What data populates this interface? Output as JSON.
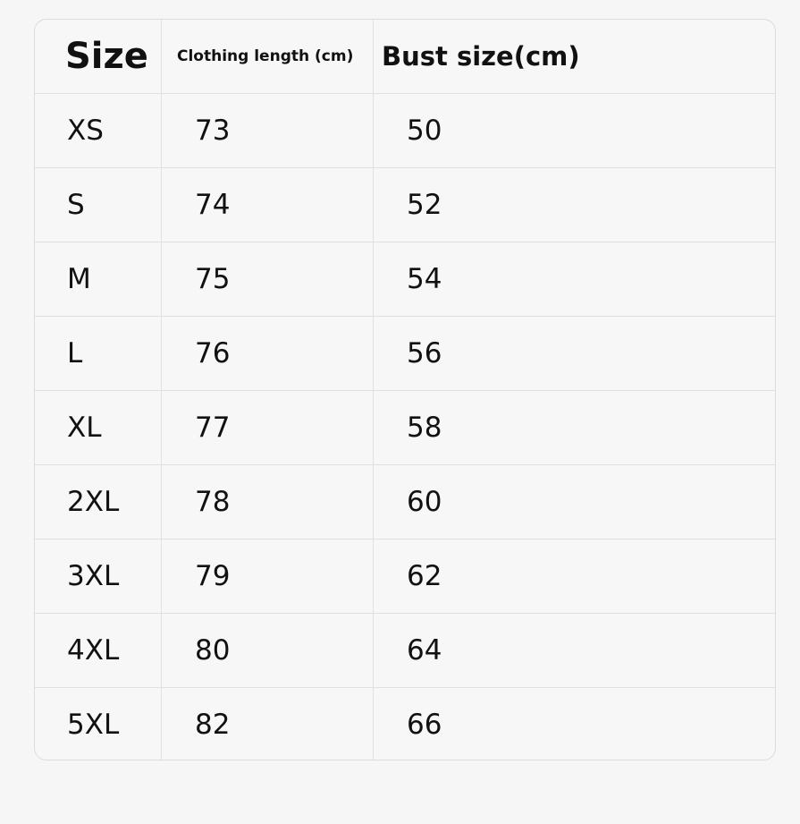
{
  "table": {
    "header": [
      "Size",
      "Clothing length (cm)",
      "Bust size(cm)"
    ],
    "rows": [
      [
        "XS",
        "73",
        "50"
      ],
      [
        "S",
        "74",
        "52"
      ],
      [
        "M",
        "75",
        "54"
      ],
      [
        "L",
        "76",
        "56"
      ],
      [
        "XL",
        "77",
        "58"
      ],
      [
        "2XL",
        "78",
        "60"
      ],
      [
        "3XL",
        "79",
        "62"
      ],
      [
        "4XL",
        "80",
        "64"
      ],
      [
        "5XL",
        "82",
        "66"
      ]
    ]
  }
}
